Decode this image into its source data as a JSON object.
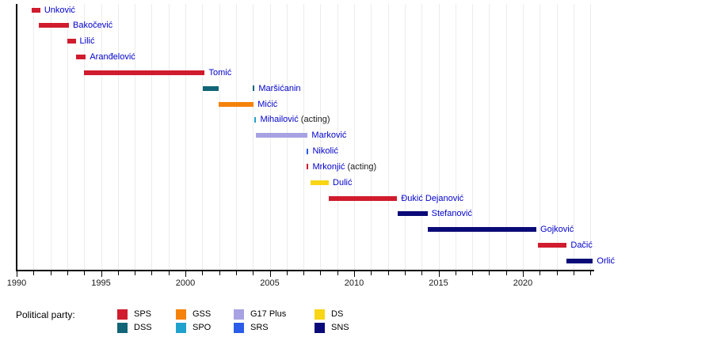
{
  "chart_data": {
    "type": "bar",
    "variant": "gantt-timeline",
    "title": "",
    "xlabel": "",
    "ylabel": "",
    "grid": "vertical, one line per year",
    "axis": {
      "range_start": 1990,
      "range_end": 2024.2,
      "labeled_ticks": [
        "1990",
        "1995",
        "2000",
        "2005",
        "2010",
        "2015",
        "2020"
      ],
      "labeled_tick_years": [
        1990,
        1995,
        2000,
        2005,
        2010,
        2015,
        2020
      ],
      "minor_tick_every_years": 1
    },
    "people": [
      {
        "name": "Unković",
        "suffix": "",
        "party": "SPS",
        "segments": [
          [
            1990.9,
            1991.4
          ]
        ]
      },
      {
        "name": "Bakočević",
        "suffix": "",
        "party": "SPS",
        "segments": [
          [
            1991.3,
            1993.1
          ]
        ]
      },
      {
        "name": "Lilić",
        "suffix": "",
        "party": "SPS",
        "segments": [
          [
            1993.0,
            1993.5
          ]
        ]
      },
      {
        "name": "Aranđelović",
        "suffix": "",
        "party": "SPS",
        "segments": [
          [
            1993.5,
            1994.1
          ]
        ]
      },
      {
        "name": "Tomić",
        "suffix": "",
        "party": "SPS",
        "segments": [
          [
            1994.0,
            2001.15
          ]
        ]
      },
      {
        "name": "Maršićanin",
        "suffix": "",
        "party": "DSS",
        "segments": [
          [
            2001.05,
            2001.95
          ],
          [
            2004.0,
            2004.1
          ]
        ]
      },
      {
        "name": "Mićić",
        "suffix": "",
        "party": "GSS",
        "segments": [
          [
            2001.95,
            2004.05
          ]
        ]
      },
      {
        "name": "Mihailović",
        "suffix": " (acting)",
        "party": "SPO",
        "segments": [
          [
            2004.1,
            2004.2
          ]
        ]
      },
      {
        "name": "Marković",
        "suffix": "",
        "party": "G17 Plus",
        "segments": [
          [
            2004.2,
            2007.25
          ]
        ]
      },
      {
        "name": "Nikolić",
        "suffix": "",
        "party": "SRS",
        "segments": [
          [
            2007.2,
            2007.3
          ]
        ]
      },
      {
        "name": "Mrkonjić",
        "suffix": " (acting)",
        "party": "SPS",
        "segments": [
          [
            2007.2,
            2007.3
          ]
        ]
      },
      {
        "name": "Dulić",
        "suffix": "",
        "party": "DS",
        "segments": [
          [
            2007.4,
            2008.5
          ]
        ]
      },
      {
        "name": "Đukić Dejanović",
        "suffix": "",
        "party": "SPS",
        "segments": [
          [
            2008.5,
            2012.55
          ]
        ]
      },
      {
        "name": "Stefanović",
        "suffix": "",
        "party": "SNS",
        "segments": [
          [
            2012.6,
            2014.35
          ]
        ]
      },
      {
        "name": "Gojković",
        "suffix": "",
        "party": "SNS",
        "segments": [
          [
            2014.35,
            2020.8
          ]
        ]
      },
      {
        "name": "Dačić",
        "suffix": "",
        "party": "SPS",
        "segments": [
          [
            2020.9,
            2022.6
          ]
        ]
      },
      {
        "name": "Orlić",
        "suffix": "",
        "party": "SNS",
        "segments": [
          [
            2022.6,
            2024.15
          ]
        ]
      }
    ],
    "parties": {
      "SPS": "#d01c2e",
      "DSS": "#126577",
      "GSS": "#f5820a",
      "SPO": "#21a2cd",
      "G17 Plus": "#a7a2e2",
      "SRS": "#2b5ce8",
      "DS": "#f8d515",
      "SNS": "#0a0a78"
    },
    "legend_position": "bottom"
  },
  "legend": {
    "label": "Political party:",
    "columns": [
      [
        "SPS",
        "DSS"
      ],
      [
        "GSS",
        "SPO"
      ],
      [
        "G17 Plus",
        "SRS"
      ],
      [
        "DS",
        "SNS"
      ]
    ]
  },
  "colors": {
    "name_label": "#0000cc",
    "acting_text": "#1a1a1a",
    "axis": "#000000",
    "grid": "#ececec",
    "background": "#ffffff"
  }
}
